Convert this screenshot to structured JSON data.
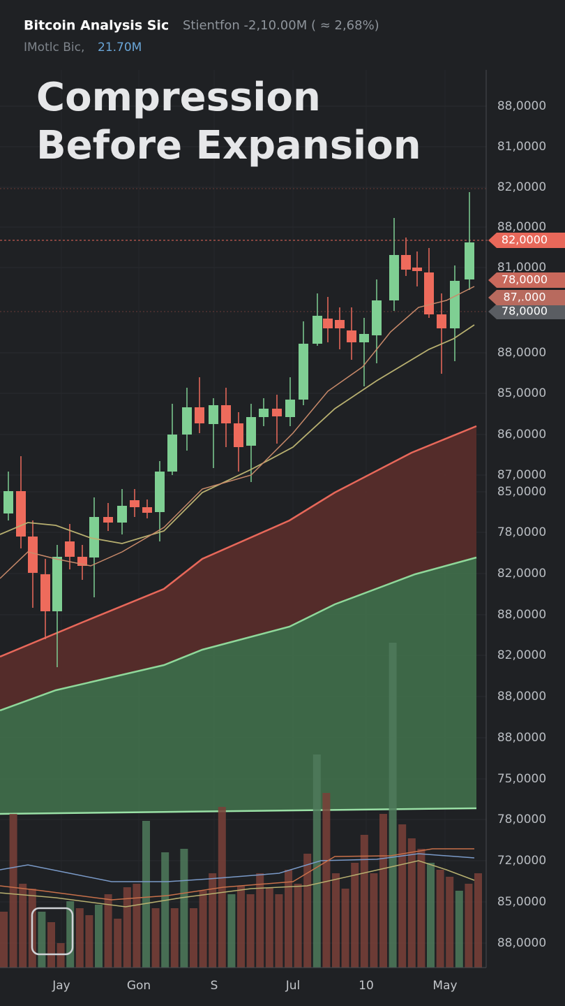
{
  "header": {
    "symbol": "Bitcoin Analysis Sic",
    "stats": "Stientfon -2,10.00M ( ≈ 2,68%)",
    "sub_label": "IMotlc Bic,",
    "sub_value": "21.70M"
  },
  "title": [
    "Compression",
    "Before Expansion"
  ],
  "y_axis_labels": [
    "88,0000",
    "81,0000",
    "82,0000",
    "88,0000",
    "81,0000",
    "88,0000",
    "85,0000",
    "86,0000",
    "87,0000",
    "85,0000",
    "78,0000",
    "82,0000",
    "88,0000",
    "82,0000",
    "88,0000",
    "88,0000",
    "75,0000",
    "78,0000",
    "72,0000",
    "85,0000",
    "88,0000"
  ],
  "price_tags": [
    "82,0000",
    "78,0000",
    "87,.000",
    "78,0000"
  ],
  "x_axis_labels": [
    "Jay",
    "Gon",
    "S",
    "Jul",
    "10",
    "May"
  ]
}
